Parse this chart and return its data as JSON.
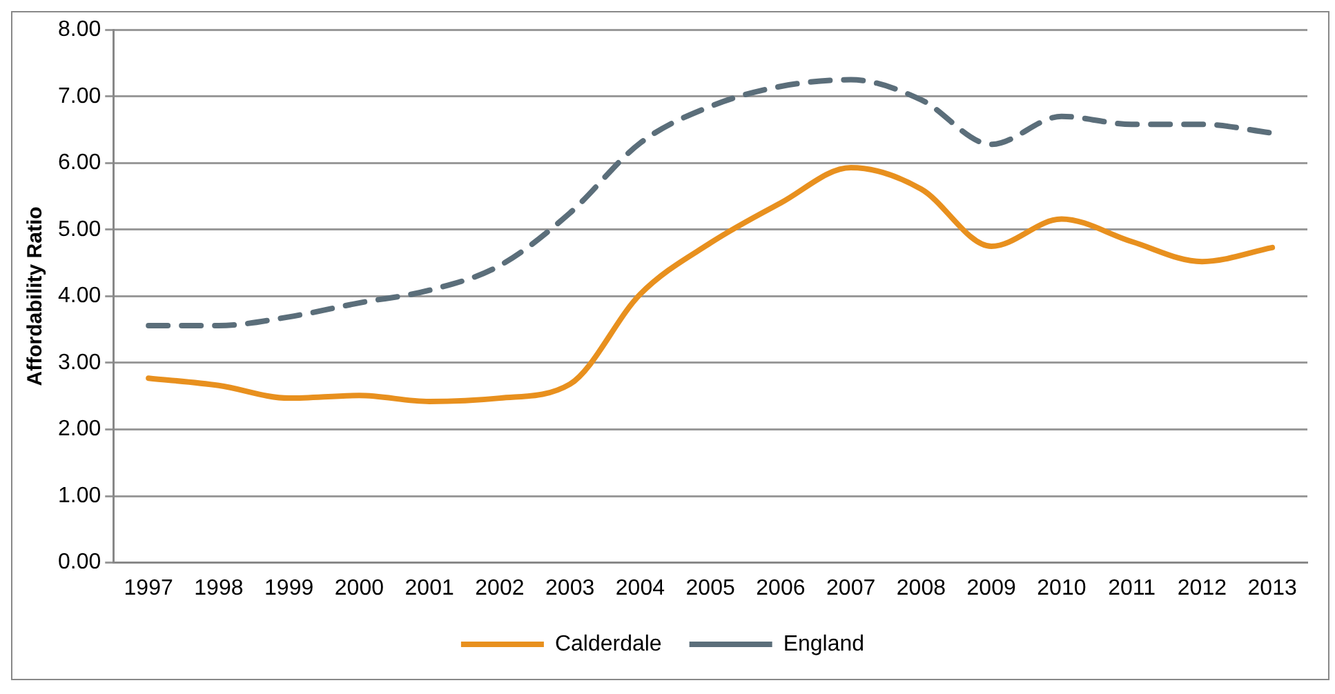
{
  "chart_data": {
    "type": "line",
    "ylabel": "Affordability Ratio",
    "categories": [
      "1997",
      "1998",
      "1999",
      "2000",
      "2001",
      "2002",
      "2003",
      "2004",
      "2005",
      "2006",
      "2007",
      "2008",
      "2009",
      "2010",
      "2011",
      "2012",
      "2013"
    ],
    "series": [
      {
        "name": "Calderdale",
        "color": "#e8901e",
        "line_style": "solid",
        "values": [
          2.77,
          2.66,
          2.47,
          2.51,
          2.42,
          2.47,
          2.68,
          4.03,
          4.8,
          5.4,
          5.93,
          5.61,
          4.75,
          5.16,
          4.82,
          4.52,
          4.73
        ]
      },
      {
        "name": "England",
        "color": "#5b6e7a",
        "line_style": "dashed",
        "values": [
          3.56,
          3.56,
          3.69,
          3.9,
          4.09,
          4.46,
          5.25,
          6.3,
          6.85,
          7.15,
          7.25,
          6.95,
          6.28,
          6.7,
          6.58,
          6.58,
          6.45
        ]
      }
    ],
    "ylim": [
      0,
      8
    ],
    "yticks": [
      {
        "value": 0,
        "label": "0.00"
      },
      {
        "value": 1,
        "label": "1.00"
      },
      {
        "value": 2,
        "label": "2.00"
      },
      {
        "value": 3,
        "label": "3.00"
      },
      {
        "value": 4,
        "label": "4.00"
      },
      {
        "value": 5,
        "label": "5.00"
      },
      {
        "value": 6,
        "label": "6.00"
      },
      {
        "value": 7,
        "label": "7.00"
      },
      {
        "value": 8,
        "label": "8.00"
      }
    ],
    "grid": "y",
    "legend": "bottom",
    "marker": "none"
  }
}
